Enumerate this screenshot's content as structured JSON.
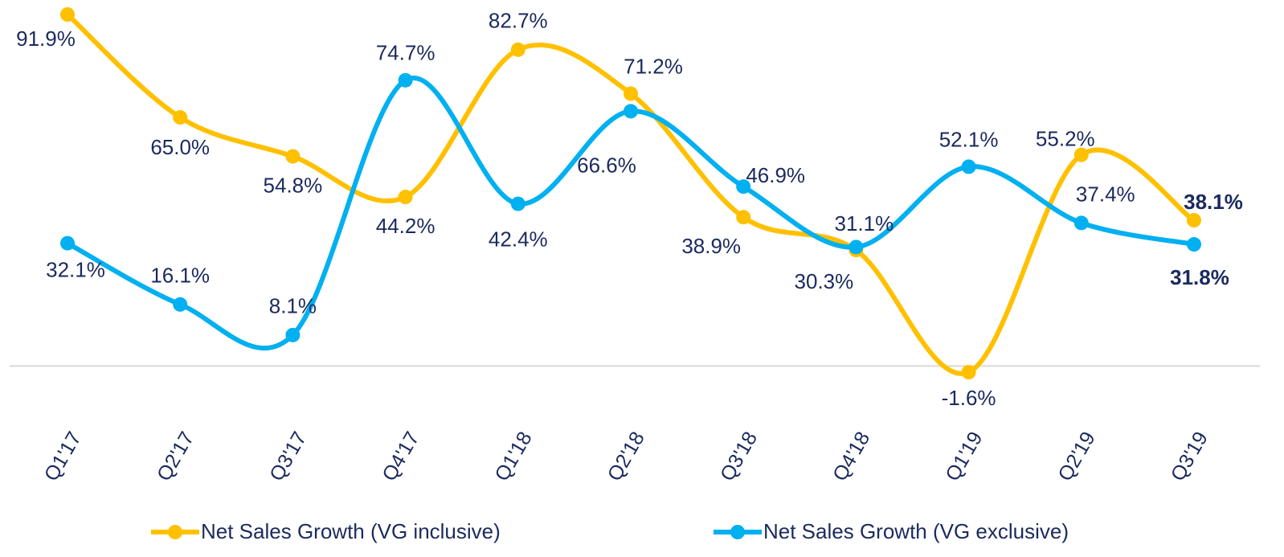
{
  "chart_data": {
    "type": "line",
    "categories": [
      "Q1'17",
      "Q2'17",
      "Q3'17",
      "Q4'17",
      "Q1'18",
      "Q2'18",
      "Q3'18",
      "Q4'18",
      "Q1'19",
      "Q2'19",
      "Q3'19"
    ],
    "series": [
      {
        "name": "Net Sales Growth (VG inclusive)",
        "color": "#ffc000",
        "values": [
          91.9,
          65.0,
          54.8,
          44.2,
          82.7,
          71.2,
          38.9,
          30.3,
          -1.6,
          55.2,
          38.1
        ],
        "value_labels": [
          "91.9%",
          "65.0%",
          "54.8%",
          "44.2%",
          "82.7%",
          "71.2%",
          "38.9%",
          "30.3%",
          "-1.6%",
          "55.2%",
          "38.1%"
        ]
      },
      {
        "name": "Net Sales Growth (VG exclusive)",
        "color": "#00b0f0",
        "values": [
          32.1,
          16.1,
          8.1,
          74.7,
          42.4,
          66.6,
          46.9,
          31.1,
          52.1,
          37.4,
          31.8
        ],
        "value_labels": [
          "32.1%",
          "16.1%",
          "8.1%",
          "74.7%",
          "42.4%",
          "66.6%",
          "46.9%",
          "31.1%",
          "52.1%",
          "37.4%",
          "31.8%"
        ]
      }
    ],
    "legend": "bottom"
  }
}
